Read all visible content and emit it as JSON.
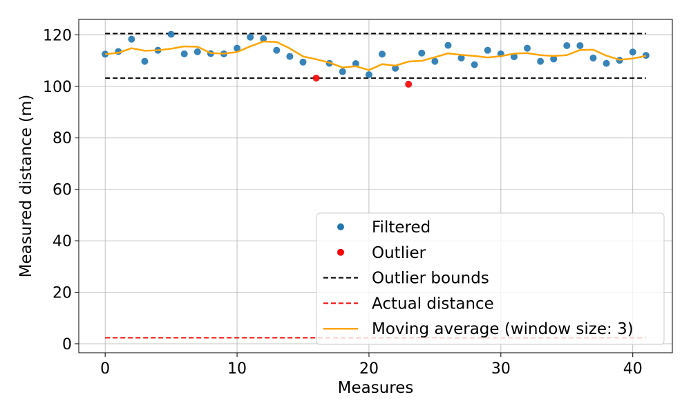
{
  "chart_data": {
    "type": "scatter",
    "xlabel": "Measures",
    "ylabel": "Measured distance (m)",
    "xlim": [
      -2,
      43
    ],
    "ylim": [
      -3.5,
      126
    ],
    "x_ticks": [
      0,
      10,
      20,
      30,
      40
    ],
    "y_ticks": [
      0,
      20,
      40,
      60,
      80,
      100,
      120
    ],
    "grid": true,
    "legend_position": "lower-right",
    "series": [
      {
        "name": "Filtered",
        "kind": "scatter",
        "color": "#1f77b4",
        "x": [
          0,
          1,
          2,
          3,
          4,
          5,
          6,
          7,
          8,
          9,
          10,
          11,
          12,
          13,
          14,
          15,
          17,
          18,
          19,
          20,
          21,
          22,
          24,
          25,
          26,
          27,
          28,
          29,
          30,
          31,
          32,
          33,
          34,
          35,
          36,
          37,
          38,
          39,
          40,
          41
        ],
        "y": [
          112.5,
          113.5,
          118.3,
          109.7,
          114,
          120.2,
          112.6,
          113.4,
          112.7,
          112.6,
          114.8,
          119.1,
          118.5,
          114,
          111.6,
          109.4,
          108.9,
          105.7,
          108.8,
          104.5,
          112.5,
          107,
          112.9,
          109.7,
          115.9,
          111,
          108.4,
          114,
          112.6,
          111.5,
          114.8,
          109.7,
          110.6,
          115.8,
          115.8,
          111,
          108.9,
          110.1,
          113.3,
          112
        ]
      },
      {
        "name": "Outlier",
        "kind": "scatter",
        "color": "#ff0000",
        "x": [
          16,
          23
        ],
        "y": [
          103.2,
          100.8
        ]
      },
      {
        "name": "Outlier bounds",
        "kind": "hline",
        "style": "dashed",
        "color": "#000000",
        "x": [
          0,
          41
        ],
        "y_values": [
          120.5,
          103.2
        ]
      },
      {
        "name": "Actual distance",
        "kind": "hline",
        "style": "dashed",
        "color": "#ff0000",
        "x": [
          0,
          41
        ],
        "y_values": [
          2.3
        ]
      },
      {
        "name": "Moving average (window size: 3)",
        "kind": "line",
        "color": "#ffa500",
        "x": [
          0,
          1,
          2,
          3,
          4,
          5,
          6,
          7,
          8,
          9,
          10,
          11,
          12,
          13,
          14,
          15,
          16,
          17,
          18,
          19,
          20,
          21,
          22,
          23,
          24,
          25,
          26,
          27,
          28,
          29,
          30,
          31,
          32,
          33,
          34,
          35,
          36,
          37,
          38,
          39,
          40,
          41
        ],
        "y": [
          112.5,
          113,
          114.8,
          113.8,
          114,
          114.6,
          115.5,
          115.4,
          112.9,
          112.7,
          113.3,
          115.5,
          117.4,
          117.2,
          114.7,
          111.6,
          110.5,
          109.2,
          107.3,
          107.8,
          106.3,
          108.6,
          108.0,
          109.6,
          109.9,
          111.3,
          112.8,
          112.2,
          111.8,
          111.2,
          111.7,
          112.7,
          112.9,
          112.1,
          111.8,
          112.1,
          114.1,
          114.2,
          111.9,
          110.3,
          110.8,
          111.8
        ]
      }
    ]
  }
}
